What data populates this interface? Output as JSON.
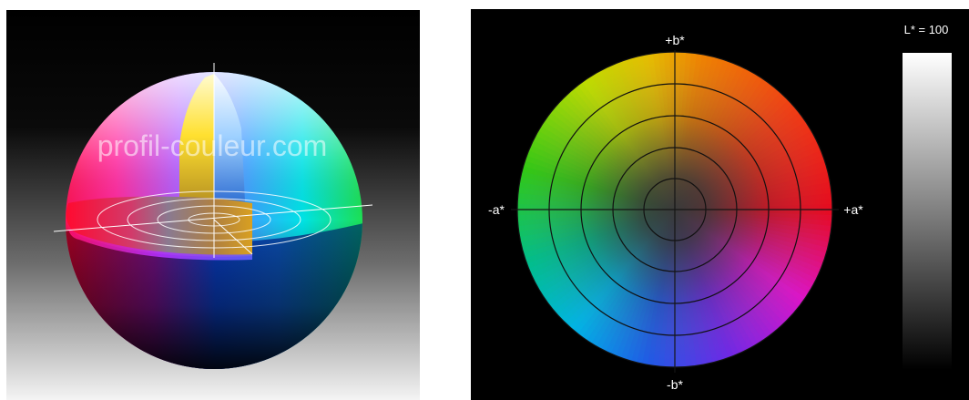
{
  "sphere_panel": {
    "watermark": "profil-couleur.com",
    "colors": {
      "bg_top": "#000000",
      "bg_bottom": "#f2f2f2"
    }
  },
  "wheel_panel": {
    "axis_labels": {
      "pos_b": "+b*",
      "neg_b": "-b*",
      "neg_a": "-a*",
      "pos_a": "+a*"
    },
    "lightness_label": "L* = 100",
    "ring_count": 5,
    "colors": {
      "background": "#000000",
      "grid": "#101010",
      "axis": "#1a1a1a",
      "label": "#ffffff"
    }
  }
}
